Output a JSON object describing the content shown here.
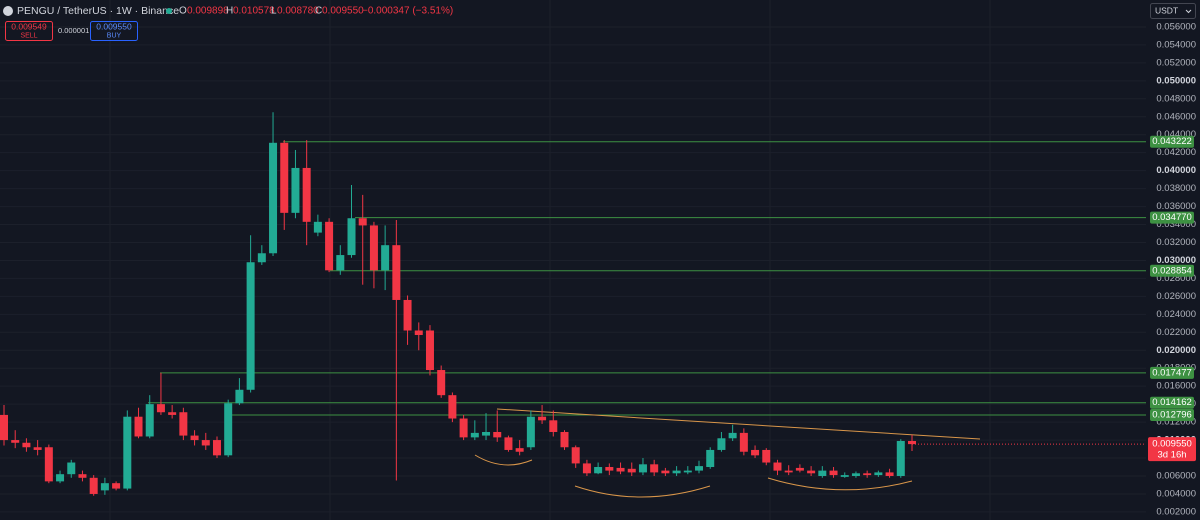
{
  "header": {
    "symbol": "PENGU / TetherUS · 1W · Binance",
    "o_key": "O",
    "o": "0.009898",
    "h_key": "H",
    "h": "0.010578",
    "l_key": "L",
    "l": "0.008780",
    "c_key": "C",
    "c": "0.009550",
    "change": "−0.000347 (−3.51%)",
    "sell_price": "0.009549",
    "sell": "SELL",
    "spread": "0.000001",
    "buy_price": "0.009550",
    "buy": "BUY",
    "currency": "USDT"
  },
  "chart_data": {
    "type": "candlestick",
    "up_color": "#22ab94",
    "down_color": "#f23645",
    "level_color": "#3d9142",
    "price_color": "#f23645",
    "grid": true,
    "ylim": [
      0.0011,
      0.059
    ],
    "yticks": [
      {
        "value": 0.056,
        "label": "0.056000"
      },
      {
        "value": 0.054,
        "label": "0.054000"
      },
      {
        "value": 0.052,
        "label": "0.052000"
      },
      {
        "value": 0.05,
        "label": "0.050000"
      },
      {
        "value": 0.048,
        "label": "0.048000"
      },
      {
        "value": 0.046,
        "label": "0.046000"
      },
      {
        "value": 0.044,
        "label": "0.044000"
      },
      {
        "value": 0.042,
        "label": "0.042000"
      },
      {
        "value": 0.04,
        "label": "0.040000"
      },
      {
        "value": 0.038,
        "label": "0.038000"
      },
      {
        "value": 0.036,
        "label": "0.036000"
      },
      {
        "value": 0.034,
        "label": "0.034000"
      },
      {
        "value": 0.032,
        "label": "0.032000"
      },
      {
        "value": 0.03,
        "label": "0.030000"
      },
      {
        "value": 0.028,
        "label": "0.028000"
      },
      {
        "value": 0.026,
        "label": "0.026000"
      },
      {
        "value": 0.024,
        "label": "0.024000"
      },
      {
        "value": 0.022,
        "label": "0.022000"
      },
      {
        "value": 0.02,
        "label": "0.020000"
      },
      {
        "value": 0.018,
        "label": "0.018000"
      },
      {
        "value": 0.016,
        "label": "0.016000"
      },
      {
        "value": 0.014,
        "label": "0.014000"
      },
      {
        "value": 0.012,
        "label": "0.012000"
      },
      {
        "value": 0.01,
        "label": "0.010000"
      },
      {
        "value": 0.008,
        "label": "0.008000"
      },
      {
        "value": 0.006,
        "label": "0.006000"
      },
      {
        "value": 0.004,
        "label": "0.004000"
      },
      {
        "value": 0.002,
        "label": "0.002000"
      }
    ],
    "levels": [
      0.043222,
      {
        "value": 0.03477,
        "label": "0.034770"
      },
      0.028854,
      0.017477,
      0.014162,
      0.012796
    ],
    "price": {
      "value": 0.00955,
      "label": "0.009550"
    },
    "countdown": "3d 16h",
    "open": [
      0.0128,
      0.01,
      0.0097,
      0.0092,
      0.0092,
      0.0054,
      0.0062,
      0.0062,
      0.0058,
      0.0044,
      0.0052,
      0.0046,
      0.0126,
      0.0104,
      0.014,
      0.0131,
      0.0131,
      0.0105,
      0.01,
      0.01,
      0.0083,
      0.0141,
      0.0156,
      0.0298,
      0.0308,
      0.0431,
      0.0353,
      0.0403,
      0.0331,
      0.0343,
      0.0289,
      0.0306,
      0.0347,
      0.0339,
      0.0289,
      0.0317,
      0.0256,
      0.0222,
      0.0222,
      0.0178,
      0.015,
      0.0124,
      0.0103,
      0.0105,
      0.0109,
      0.0103,
      0.0091,
      0.0092,
      0.0126,
      0.0122,
      0.0109,
      0.0092,
      0.0074,
      0.0063,
      0.007,
      0.0069,
      0.0068,
      0.0064,
      0.0073,
      0.0066,
      0.0063,
      0.0064,
      0.0066,
      0.007,
      0.0089,
      0.0102,
      0.0108,
      0.0089,
      0.0089,
      0.0075,
      0.0066,
      0.0069,
      0.0066,
      0.006,
      0.0066,
      0.0059,
      0.006,
      0.0063,
      0.0061,
      0.0064,
      0.006,
      0.009898
    ],
    "high": [
      0.0139,
      0.0111,
      0.0102,
      0.01,
      0.0095,
      0.0066,
      0.0078,
      0.0066,
      0.0061,
      0.0058,
      0.0054,
      0.0133,
      0.0136,
      0.015,
      0.0175,
      0.0139,
      0.0136,
      0.0111,
      0.0108,
      0.0104,
      0.0145,
      0.0169,
      0.0328,
      0.0317,
      0.0465,
      0.0434,
      0.0423,
      0.0434,
      0.0351,
      0.0347,
      0.0317,
      0.0384,
      0.0373,
      0.0343,
      0.0339,
      0.0345,
      0.0261,
      0.0231,
      0.0228,
      0.0183,
      0.0153,
      0.0128,
      0.0122,
      0.013,
      0.0133,
      0.0105,
      0.01,
      0.0133,
      0.0139,
      0.0133,
      0.0111,
      0.0094,
      0.0078,
      0.0075,
      0.0074,
      0.0075,
      0.0075,
      0.008,
      0.0078,
      0.0069,
      0.0071,
      0.0071,
      0.0077,
      0.0092,
      0.0109,
      0.0117,
      0.0113,
      0.0094,
      0.0091,
      0.0078,
      0.0072,
      0.0073,
      0.0071,
      0.0071,
      0.007,
      0.0064,
      0.0065,
      0.0066,
      0.0066,
      0.0068,
      0.0101,
      0.010578
    ],
    "low": [
      0.0094,
      0.0091,
      0.0087,
      0.0083,
      0.0052,
      0.0052,
      0.0058,
      0.0054,
      0.0038,
      0.0039,
      0.0044,
      0.0044,
      0.0102,
      0.0102,
      0.0128,
      0.0124,
      0.01,
      0.0094,
      0.0089,
      0.008,
      0.0081,
      0.0139,
      0.0153,
      0.0295,
      0.0305,
      0.0334,
      0.0347,
      0.0317,
      0.0327,
      0.0287,
      0.0284,
      0.0303,
      0.0273,
      0.0269,
      0.0267,
      0.0055,
      0.0206,
      0.02,
      0.0172,
      0.0147,
      0.012,
      0.01,
      0.01,
      0.01,
      0.0098,
      0.0087,
      0.0083,
      0.0089,
      0.0118,
      0.0104,
      0.0089,
      0.0069,
      0.006,
      0.0062,
      0.0061,
      0.0062,
      0.006,
      0.0061,
      0.006,
      0.006,
      0.006,
      0.0062,
      0.0063,
      0.0068,
      0.0087,
      0.0099,
      0.0083,
      0.008,
      0.0072,
      0.0061,
      0.0061,
      0.0064,
      0.006,
      0.0058,
      0.0058,
      0.0058,
      0.0058,
      0.0058,
      0.0059,
      0.0058,
      0.0058,
      0.00878
    ],
    "close": [
      0.01,
      0.0097,
      0.0092,
      0.0089,
      0.0054,
      0.0062,
      0.0075,
      0.0058,
      0.004,
      0.0052,
      0.0046,
      0.0126,
      0.0104,
      0.014,
      0.0131,
      0.0128,
      0.0105,
      0.01,
      0.0094,
      0.0083,
      0.0141,
      0.0156,
      0.0298,
      0.0308,
      0.0431,
      0.0353,
      0.0403,
      0.0343,
      0.0343,
      0.0289,
      0.0306,
      0.0347,
      0.0339,
      0.0289,
      0.0317,
      0.0256,
      0.0222,
      0.0217,
      0.0178,
      0.015,
      0.0124,
      0.0103,
      0.0108,
      0.0109,
      0.0103,
      0.0089,
      0.0087,
      0.0126,
      0.0122,
      0.0109,
      0.0092,
      0.0074,
      0.0063,
      0.007,
      0.0066,
      0.0065,
      0.0064,
      0.0073,
      0.0064,
      0.0063,
      0.0066,
      0.0066,
      0.0071,
      0.0089,
      0.0102,
      0.0108,
      0.0087,
      0.0083,
      0.0075,
      0.0066,
      0.0064,
      0.0066,
      0.0063,
      0.0066,
      0.0061,
      0.0061,
      0.0063,
      0.0061,
      0.0064,
      0.006,
      0.0099,
      0.00955
    ]
  }
}
